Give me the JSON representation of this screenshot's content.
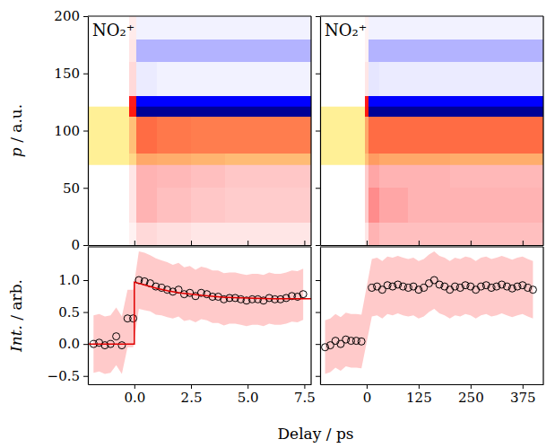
{
  "chart_data": [
    {
      "type": "heatmap",
      "title": "NO₂⁺",
      "ylabel": "p / a.u.",
      "xlim": [
        -2.05,
        7.8
      ],
      "ylim": [
        0,
        200
      ],
      "xticks": [
        0,
        2.5,
        5,
        7.5
      ],
      "yticks": [
        0,
        50,
        100,
        150,
        200
      ],
      "tick_labels": "y",
      "x_edges": [
        -2.05,
        -0.25,
        0.1,
        1.0,
        2.5,
        4.0,
        5.5,
        7.8
      ],
      "y_edges": [
        0,
        20,
        50,
        80,
        112,
        130,
        160,
        180,
        200
      ],
      "z": [
        [
          0,
          0.05,
          0.15,
          0.12,
          0.1,
          0.1,
          0.1
        ],
        [
          0,
          0.1,
          0.3,
          0.25,
          0.22,
          0.2,
          0.2
        ],
        [
          0,
          0.1,
          0.3,
          0.28,
          0.25,
          0.22,
          0.22
        ],
        [
          0,
          0.2,
          0.55,
          0.5,
          0.48,
          0.48,
          0.48
        ],
        [
          0,
          0.9,
          -1,
          -1,
          -1,
          -1,
          -1
        ],
        [
          0,
          0.15,
          -0.08,
          -0.05,
          -0.05,
          -0.05,
          -0.05
        ],
        [
          0,
          0.1,
          -0.3,
          -0.3,
          -0.3,
          -0.3,
          -0.3
        ],
        [
          0,
          0.08,
          -0.05,
          -0.05,
          -0.05,
          -0.05,
          -0.05
        ]
      ],
      "zlim": [
        -1,
        1
      ],
      "highlight": [
        70,
        121
      ]
    },
    {
      "type": "heatmap",
      "title": "NO₂⁺",
      "xlim": [
        -112,
        425
      ],
      "ylim": [
        0,
        200
      ],
      "xticks": [
        0,
        125,
        250,
        375
      ],
      "yticks": [
        0,
        50,
        100,
        150,
        200
      ],
      "tick_labels": false,
      "x_edges": [
        -112,
        -5,
        5,
        30,
        100,
        200,
        300,
        425
      ],
      "y_edges": [
        0,
        20,
        50,
        80,
        112,
        130,
        160,
        180,
        200
      ],
      "z": [
        [
          0,
          0.1,
          0.3,
          0.25,
          0.25,
          0.25,
          0.25
        ],
        [
          0,
          0.2,
          0.45,
          0.35,
          0.3,
          0.3,
          0.3
        ],
        [
          0,
          0.2,
          0.35,
          0.3,
          0.3,
          0.28,
          0.28
        ],
        [
          0,
          0.3,
          0.55,
          0.55,
          0.55,
          0.55,
          0.55
        ],
        [
          0,
          0.9,
          -1,
          -1,
          -1,
          -1,
          -1
        ],
        [
          0,
          0.1,
          -0.1,
          -0.08,
          -0.08,
          -0.08,
          -0.08
        ],
        [
          0,
          0.05,
          -0.3,
          -0.3,
          -0.3,
          -0.3,
          -0.3
        ],
        [
          0,
          0.05,
          -0.05,
          -0.05,
          -0.05,
          -0.05,
          -0.05
        ]
      ],
      "zlim": [
        -1,
        1
      ],
      "highlight": [
        70,
        121
      ]
    },
    {
      "type": "line",
      "ylabel": "Int. / arb.",
      "xlabel": "Delay / ps",
      "xlim": [
        -2.05,
        7.8
      ],
      "ylim": [
        -0.63,
        1.52
      ],
      "xticks": [
        {
          "value": 0,
          "label": "0.0"
        },
        2.5,
        {
          "value": 5,
          "label": "5.0"
        },
        7.5
      ],
      "yticks": [
        {
          "value": -0.5,
          "label": "−0.5"
        },
        {
          "value": 0,
          "label": "0.0"
        },
        0.5,
        {
          "value": 1,
          "label": "1.0"
        }
      ],
      "tick_labels": true,
      "series": [
        {
          "type": "scatter",
          "marker": "circle",
          "color": "#000000",
          "x": [
            -1.8,
            -1.55,
            -1.3,
            -1.05,
            -0.8,
            -0.55,
            -0.3,
            -0.05,
            0.2,
            0.45,
            0.7,
            0.95,
            1.2,
            1.45,
            1.7,
            1.95,
            2.2,
            2.45,
            2.7,
            2.95,
            3.2,
            3.45,
            3.7,
            3.95,
            4.2,
            4.45,
            4.7,
            4.95,
            5.2,
            5.45,
            5.7,
            5.95,
            6.2,
            6.45,
            6.7,
            6.95,
            7.2,
            7.45
          ],
          "values": [
            0.0,
            0.02,
            -0.02,
            0.0,
            0.12,
            -0.02,
            0.4,
            0.4,
            1.0,
            0.98,
            0.95,
            0.9,
            0.88,
            0.85,
            0.82,
            0.85,
            0.78,
            0.8,
            0.75,
            0.8,
            0.78,
            0.74,
            0.74,
            0.7,
            0.72,
            0.72,
            0.7,
            0.68,
            0.7,
            0.7,
            0.68,
            0.72,
            0.7,
            0.7,
            0.72,
            0.75,
            0.74,
            0.78
          ],
          "errors": [
            0.45,
            0.45,
            0.45,
            0.45,
            0.45,
            0.45,
            0.45,
            0.45,
            0.45,
            0.45,
            0.44,
            0.44,
            0.43,
            0.43,
            0.42,
            0.42,
            0.42,
            0.42,
            0.41,
            0.41,
            0.41,
            0.41,
            0.41,
            0.41,
            0.4,
            0.4,
            0.4,
            0.4,
            0.4,
            0.4,
            0.4,
            0.4,
            0.4,
            0.4,
            0.4,
            0.4,
            0.4,
            0.4
          ]
        },
        {
          "type": "line",
          "line_style": "solid",
          "color": "#e00000",
          "x": [
            -2.05,
            0,
            0,
            0.5,
            1,
            1.5,
            2,
            3,
            4,
            5,
            6,
            7,
            7.8
          ],
          "values": [
            0,
            0,
            0.97,
            0.92,
            0.87,
            0.83,
            0.8,
            0.76,
            0.73,
            0.72,
            0.71,
            0.71,
            0.71
          ]
        }
      ]
    },
    {
      "type": "line",
      "xlim": [
        -112,
        425
      ],
      "ylim": [
        -0.63,
        1.52
      ],
      "xticks": [
        0,
        125,
        250,
        375
      ],
      "yticks": [
        -0.5,
        0,
        0.5,
        1
      ],
      "tick_labels": "x",
      "series": [
        {
          "type": "scatter",
          "marker": "circle",
          "color": "#000000",
          "x": [
            -100,
            -87.5,
            -75,
            -62.5,
            -50,
            -37.5,
            -25,
            -12.5,
            12.5,
            25,
            37.5,
            50,
            62.5,
            75,
            87.5,
            100,
            112.5,
            125,
            137.5,
            150,
            162.5,
            175,
            187.5,
            200,
            212.5,
            225,
            237.5,
            250,
            262.5,
            275,
            287.5,
            300,
            312.5,
            325,
            337.5,
            350,
            362.5,
            375,
            387.5,
            400
          ],
          "values": [
            -0.05,
            -0.02,
            0.05,
            0.0,
            0.07,
            0.05,
            0.05,
            0.04,
            0.88,
            0.9,
            0.85,
            0.92,
            0.9,
            0.93,
            0.9,
            0.88,
            0.9,
            0.85,
            0.88,
            0.95,
            1.0,
            0.93,
            0.9,
            0.85,
            0.9,
            0.88,
            0.92,
            0.9,
            0.85,
            0.9,
            0.92,
            0.88,
            0.9,
            0.93,
            0.9,
            0.87,
            0.9,
            0.92,
            0.88,
            0.85
          ],
          "errors": [
            0.42,
            0.42,
            0.42,
            0.42,
            0.42,
            0.42,
            0.42,
            0.42,
            0.45,
            0.45,
            0.45,
            0.45,
            0.45,
            0.45,
            0.45,
            0.45,
            0.45,
            0.45,
            0.45,
            0.45,
            0.45,
            0.45,
            0.45,
            0.45,
            0.45,
            0.45,
            0.45,
            0.45,
            0.45,
            0.45,
            0.45,
            0.45,
            0.45,
            0.45,
            0.45,
            0.45,
            0.45,
            0.45,
            0.45,
            0.45
          ]
        }
      ]
    }
  ]
}
